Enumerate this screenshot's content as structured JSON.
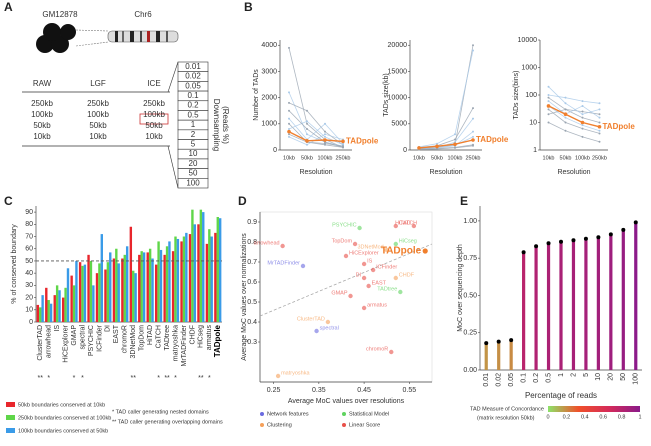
{
  "panel_labels": [
    "A",
    "B",
    "C",
    "D",
    "E"
  ],
  "diagram_a": {
    "cell_line": "GM12878",
    "chromosome": "Chr6",
    "table": {
      "headers": [
        "RAW",
        "LGF",
        "ICE"
      ],
      "rows": [
        [
          "250kb",
          "250kb",
          "250kb"
        ],
        [
          "100kb",
          "100kb",
          "100kb"
        ],
        [
          "50kb",
          "50kb",
          "50kb"
        ],
        [
          "10kb",
          "10kb",
          "10kb"
        ]
      ]
    },
    "downsampling": [
      "0.01",
      "0.02",
      "0.05",
      "0.1",
      "0.2",
      "0.5",
      "1",
      "2",
      "5",
      "10",
      "20",
      "50",
      "100"
    ],
    "downsampling_label": [
      "Downsampling",
      "(Reads %)"
    ]
  },
  "chart_data": [
    {
      "type": "line",
      "xlabel": "Resolution",
      "ylabel": "Number of TADs",
      "categories": [
        "10kb",
        "50kb",
        "100kb",
        "250kb"
      ],
      "ylim": [
        0,
        4200
      ],
      "yticks": [
        0,
        1000,
        2000,
        3000,
        4000
      ],
      "series": [
        {
          "color": "#9aa5b1",
          "values": [
            3900,
            1000,
            400,
            100
          ]
        },
        {
          "color": "#a9c9e8",
          "values": [
            2200,
            600,
            300,
            150
          ]
        },
        {
          "color": "#9aa5b1",
          "values": [
            1800,
            1500,
            700,
            200
          ]
        },
        {
          "color": "#a9c9e8",
          "values": [
            1200,
            400,
            1000,
            250
          ]
        },
        {
          "color": "#9aa5b1",
          "values": [
            1000,
            300,
            200,
            100
          ]
        },
        {
          "color": "#a9c9e8",
          "values": [
            800,
            1100,
            500,
            200
          ]
        },
        {
          "color": "#9aa5b1",
          "values": [
            600,
            300,
            250,
            150
          ]
        },
        {
          "color": "#a9c9e8",
          "values": [
            500,
            200,
            600,
            400
          ]
        },
        {
          "color": "#9aa5b1",
          "values": [
            1500,
            800,
            300,
            100
          ]
        },
        {
          "name": "TADpole",
          "color": "#f07f2d",
          "values": [
            700,
            350,
            380,
            330
          ]
        }
      ]
    },
    {
      "type": "line",
      "xlabel": "Resolution",
      "ylabel": "TADs size(kb)",
      "categories": [
        "10kb",
        "50kb",
        "100kb",
        "250kb"
      ],
      "ylim": [
        0,
        21000
      ],
      "yticks": [
        0,
        5000,
        10000,
        15000,
        20000
      ],
      "series": [
        {
          "color": "#9aa5b1",
          "values": [
            300,
            500,
            1000,
            20000
          ]
        },
        {
          "color": "#a9c9e8",
          "values": [
            200,
            400,
            800,
            3500
          ]
        },
        {
          "color": "#9aa5b1",
          "values": [
            500,
            800,
            2000,
            8000
          ]
        },
        {
          "color": "#a9c9e8",
          "values": [
            300,
            400,
            1500,
            6000
          ]
        },
        {
          "color": "#9aa5b1",
          "values": [
            200,
            300,
            500,
            1000
          ]
        },
        {
          "color": "#a9c9e8",
          "values": [
            600,
            1200,
            3000,
            19000
          ]
        },
        {
          "color": "#9aa5b1",
          "values": [
            100,
            200,
            400,
            800
          ]
        },
        {
          "color": "#a9c9e8",
          "values": [
            400,
            600,
            900,
            2500
          ]
        },
        {
          "name": "TADpole",
          "color": "#f07f2d",
          "values": [
            400,
            700,
            1100,
            1900
          ]
        }
      ]
    },
    {
      "type": "line",
      "xlabel": "Resolution",
      "ylabel": "TADs size(bins)",
      "log_y": true,
      "categories": [
        "10kb",
        "50kb",
        "100kb",
        "250kb"
      ],
      "ylim": [
        1,
        10000
      ],
      "yticks": [
        1,
        10,
        100,
        1000,
        10000
      ],
      "series": [
        {
          "color": "#9aa5b1",
          "values": [
            80,
            30,
            15,
            10
          ]
        },
        {
          "color": "#a9c9e8",
          "values": [
            40,
            15,
            8,
            5
          ]
        },
        {
          "color": "#9aa5b1",
          "values": [
            20,
            30,
            25,
            20
          ]
        },
        {
          "color": "#a9c9e8",
          "values": [
            200,
            50,
            20,
            30
          ]
        },
        {
          "color": "#9aa5b1",
          "values": [
            10,
            5,
            3,
            2
          ]
        },
        {
          "color": "#a9c9e8",
          "values": [
            60,
            20,
            40,
            15
          ]
        },
        {
          "color": "#9aa5b1",
          "values": [
            30,
            10,
            6,
            4
          ]
        },
        {
          "color": "#a9c9e8",
          "values": [
            100,
            80,
            60,
            50
          ]
        },
        {
          "name": "TADpole",
          "color": "#f07f2d",
          "values": [
            40,
            20,
            10,
            7
          ]
        }
      ]
    },
    {
      "type": "bar",
      "ylabel": "% of conserved boundary",
      "ylim": [
        0,
        95
      ],
      "yticks": [
        0,
        10,
        20,
        30,
        40,
        50,
        60,
        70,
        80,
        90
      ],
      "reference_line": 50,
      "categories": [
        "ClusterTAD",
        "arrowhead",
        "IS",
        "HiCExplorer",
        "GMAP",
        "spectral",
        "PSYCHIC",
        "ICFinder",
        "DI",
        "EAST",
        "chromoR",
        "3DNetMod",
        "TopDom",
        "HiTAD",
        "CaTCH",
        "TADtree",
        "matryoshka",
        "MrTADFinder",
        "CHDF",
        "HiCseg",
        "armatus",
        "TADpole"
      ],
      "markers": [
        "**",
        "*",
        null,
        null,
        "*",
        "*",
        null,
        null,
        null,
        null,
        null,
        "**",
        null,
        null,
        "*",
        "**",
        "*",
        null,
        null,
        "**",
        "*",
        null
      ],
      "series": [
        {
          "name": "50kb boundaries conserved at 10kb",
          "color": "#e8262c",
          "values": [
            14,
            28,
            22,
            20,
            38,
            49,
            55,
            40,
            43,
            52,
            52,
            78,
            55,
            57,
            47,
            55,
            58,
            66,
            72,
            80,
            64,
            73
          ]
        },
        {
          "name": "250kb boundaries conserved at 100kb",
          "color": "#5fd649",
          "values": [
            12,
            18,
            30,
            28,
            30,
            46,
            50,
            48,
            49,
            60,
            55,
            42,
            58,
            60,
            66,
            62,
            70,
            70,
            92,
            92,
            76,
            86
          ]
        },
        {
          "name": "100kb boundaries conserved at 50kb",
          "color": "#3a9be8",
          "values": [
            22,
            15,
            26,
            44,
            50,
            47,
            30,
            72,
            57,
            48,
            62,
            40,
            57,
            52,
            59,
            66,
            68,
            73,
            80,
            90,
            70,
            85
          ]
        }
      ],
      "notes": [
        "* TAD caller generating nested domains",
        "** TAD caller generating overlapping domains"
      ]
    },
    {
      "type": "scatter",
      "xlabel": "Average MoC values over resolutions",
      "ylabel": "Average MoC values over normalizations",
      "xlim": [
        0.22,
        0.6
      ],
      "xticks": [
        0.25,
        0.35,
        0.45,
        0.55
      ],
      "ylim": [
        0.1,
        0.95
      ],
      "yticks": [
        0.3,
        0.4,
        0.5,
        0.6,
        0.7,
        0.8,
        0.9
      ],
      "trend": {
        "x": [
          0.22,
          0.6
        ],
        "y": [
          0.43,
          0.79
        ]
      },
      "series": [
        {
          "name": "Network features",
          "color": "#6a6ae0",
          "x": [
            0.315,
            0.345
          ],
          "values": [
            0.68,
            0.355
          ],
          "labels": [
            "MrTADFinder",
            "spectral"
          ]
        },
        {
          "name": "Statistical Model",
          "color": "#5fd35f",
          "x": [
            0.44,
            0.52,
            0.53
          ],
          "values": [
            0.87,
            0.79,
            0.55
          ],
          "labels": [
            "PSYCHIC",
            "HiCseg",
            "TADtree"
          ]
        },
        {
          "name": "Clustering",
          "color": "#f5a05a",
          "x": [
            0.37,
            0.26,
            0.5,
            0.52
          ],
          "values": [
            0.4,
            0.13,
            0.76,
            0.62
          ],
          "labels": [
            "ClusterTAD",
            "matryoshka",
            "3DNetMod",
            "CHDF"
          ]
        },
        {
          "name": "Linear Score",
          "color": "#e8504a",
          "x": [
            0.27,
            0.41,
            0.43,
            0.52,
            0.56,
            0.45,
            0.45,
            0.46,
            0.42,
            0.45,
            0.51,
            0.47
          ],
          "values": [
            0.78,
            0.73,
            0.79,
            0.88,
            0.88,
            0.69,
            0.62,
            0.58,
            0.53,
            0.47,
            0.25,
            0.66
          ],
          "labels": [
            "arrowhead",
            "HiCExplorer",
            "TopDom",
            "CaTCH",
            "HiTAD",
            "IS",
            "DI",
            "EAST",
            "GMAP",
            "armatus",
            "chromoR",
            "ICFinder"
          ]
        }
      ],
      "highlight": {
        "label": "TADpole",
        "x": 0.585,
        "value": 0.755,
        "color": "#f07f2d"
      }
    },
    {
      "type": "lollipop",
      "xlabel": "Percentage of reads",
      "ylabel": "MoC over sequencing depth",
      "categories": [
        "0.01",
        "0.02",
        "0.05",
        "0.1",
        "0.2",
        "0.5",
        "1",
        "2",
        "5",
        "10",
        "20",
        "50",
        "100"
      ],
      "values": [
        0.18,
        0.19,
        0.2,
        0.79,
        0.83,
        0.85,
        0.86,
        0.87,
        0.88,
        0.89,
        0.91,
        0.94,
        0.99
      ],
      "ylim": [
        0,
        1.1
      ],
      "yticks": [
        {
          "value": 0,
          "label": "0.00"
        },
        {
          "value": 0.25,
          "label": "0.25"
        },
        {
          "value": 0.5,
          "label": "0.50"
        },
        {
          "value": 0.75,
          "label": "0.75"
        },
        {
          "value": 1,
          "label": "1.00"
        }
      ],
      "colormap": [
        "#8de36a",
        "#f0502a",
        "#d42a5a",
        "#8a1a8a"
      ],
      "clim": [
        0,
        1
      ],
      "colorbar": {
        "title": "TAD Measure of Concordance",
        "subtitle": "(matrix resolution 50kb)",
        "ticks": [
          0,
          0.2,
          0.4,
          0.6,
          0.8,
          1
        ]
      }
    }
  ]
}
